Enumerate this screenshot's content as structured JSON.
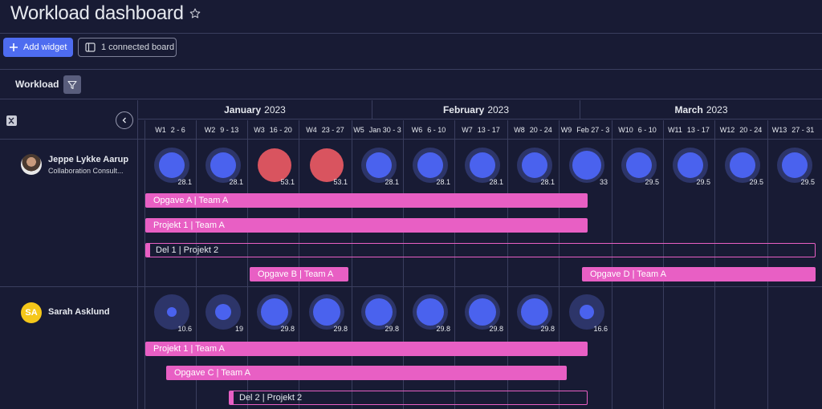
{
  "header": {
    "title": "Workload dashboard",
    "star_icon": "star-icon"
  },
  "toolbar": {
    "add_widget": "Add widget",
    "connected_board": "1 connected board"
  },
  "section": {
    "title": "Workload"
  },
  "months": [
    {
      "name": "January",
      "year": "2023"
    },
    {
      "name": "February",
      "year": "2023"
    },
    {
      "name": "March",
      "year": "2023"
    }
  ],
  "weeks": [
    {
      "w": "W1",
      "range": "2 - 6"
    },
    {
      "w": "W2",
      "range": "9 - 13"
    },
    {
      "w": "W3",
      "range": "16 - 20"
    },
    {
      "w": "W4",
      "range": "23 - 27"
    },
    {
      "w": "W5",
      "range": "Jan 30 - 3"
    },
    {
      "w": "W6",
      "range": "6 - 10"
    },
    {
      "w": "W7",
      "range": "13 - 17"
    },
    {
      "w": "W8",
      "range": "20 - 24"
    },
    {
      "w": "W9",
      "range": "Feb 27 - 3"
    },
    {
      "w": "W10",
      "range": "6 - 10"
    },
    {
      "w": "W11",
      "range": "13 - 17"
    },
    {
      "w": "W12",
      "range": "20 - 24"
    },
    {
      "w": "W13",
      "range": "27 - 31"
    }
  ],
  "people": [
    {
      "name": "Jeppe Lykke Aarup",
      "role": "Collaboration Consult...",
      "workload": [
        "28.1",
        "28.1",
        "53.1",
        "53.1",
        "28.1",
        "28.1",
        "28.1",
        "28.1",
        "33",
        "29.5",
        "29.5",
        "29.5",
        "29.5"
      ],
      "tasks": [
        "Opgave A | Team A",
        "Projekt 1 | Team A",
        "Del 1 | Projekt 2",
        "Opgave B | Team A",
        "Opgave D | Team A"
      ]
    },
    {
      "name": "Sarah Asklund",
      "initials": "SA",
      "workload": [
        "10.6",
        "19",
        "29.8",
        "29.8",
        "29.8",
        "29.8",
        "29.8",
        "29.8",
        "16.6"
      ],
      "tasks": [
        "Projekt 1 | Team A",
        "Opgave C | Team A",
        "Del 2 | Projekt 2"
      ]
    }
  ],
  "colors": {
    "accent": "#4e6cf0",
    "task": "#e85fc4",
    "overload": "#d9545f",
    "bubble": "#4a62ee"
  }
}
